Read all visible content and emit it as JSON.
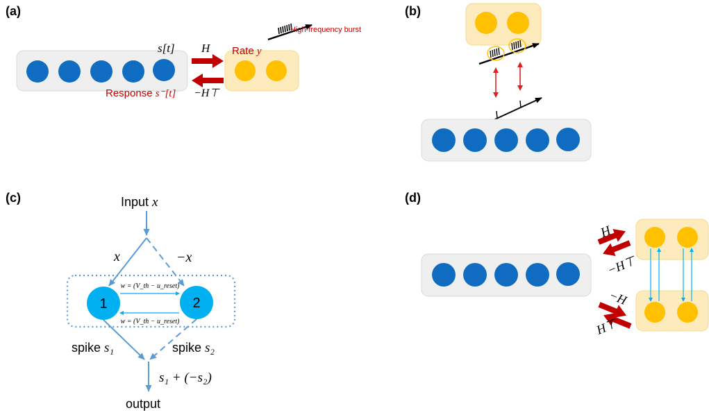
{
  "panels": {
    "a": {
      "label": "(a)",
      "s_t": "s[t]",
      "H": "H",
      "rate_prefix": "Rate ",
      "rate_var": "y",
      "burst": "High-frequency burst",
      "response_prefix": "Response ",
      "response_var": "s⁻[t]",
      "neg_H_T": "−H⊤"
    },
    "b": {
      "label": "(b)"
    },
    "c": {
      "label": "(c)",
      "input_prefix": "Input ",
      "input_var": "x",
      "x": "x",
      "neg_x": "−x",
      "w_top": "w = (V_th − u_reset)",
      "w_bottom": "w = (V_th − u_reset)",
      "neuron1": "1",
      "neuron2": "2",
      "spike1_prefix": "spike ",
      "spike1_var": "s₁",
      "spike2_prefix": "spike ",
      "spike2_var": "s₂",
      "sum": "s₁ + (−s₂)",
      "output": "output"
    },
    "d": {
      "label": "(d)",
      "H": "H",
      "neg_H_T": "−H⊤",
      "neg_H": "−H",
      "H_T": "H⊤"
    }
  },
  "colors": {
    "blue_neuron": "#0f6cc0",
    "orange_neuron": "#ffc000",
    "gray_box": "#efefef",
    "orange_box": "#fdebbd",
    "red_arrow": "#c00000",
    "light_blue": "#00b0f0",
    "steel_blue": "#5b9bd5"
  }
}
